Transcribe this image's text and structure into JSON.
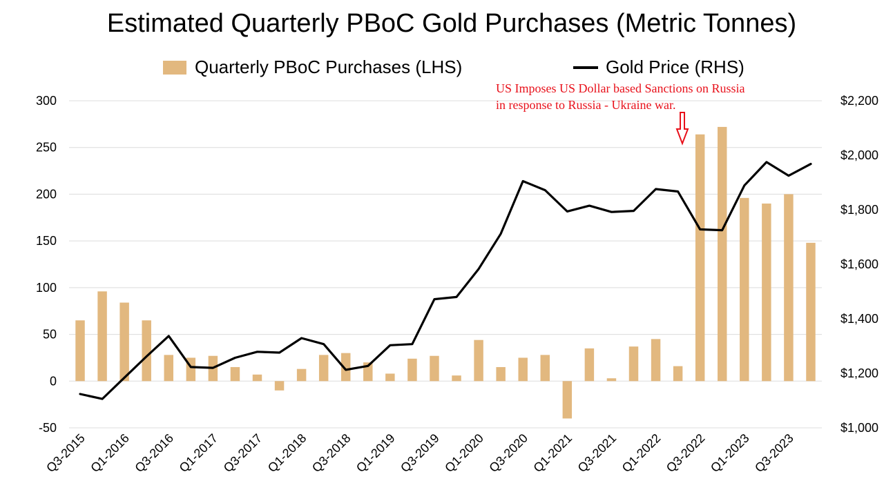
{
  "chart_data": {
    "type": "bar+line",
    "title": "Estimated Quarterly PBoC Gold Purchases (Metric Tonnes)",
    "legend": {
      "placement": "top-center",
      "bars_label": "Quarterly PBoC Purchases (LHS)",
      "line_label": "Gold Price (RHS)"
    },
    "colors": {
      "bar": "#e2b87f",
      "line": "#000000",
      "grid": "#dcdcdc",
      "annotation": "#e8101a"
    },
    "categories": [
      "Q3-2015",
      "Q4-2015",
      "Q1-2016",
      "Q2-2016",
      "Q3-2016",
      "Q4-2016",
      "Q1-2017",
      "Q2-2017",
      "Q3-2017",
      "Q4-2017",
      "Q1-2018",
      "Q2-2018",
      "Q3-2018",
      "Q4-2018",
      "Q1-2019",
      "Q2-2019",
      "Q3-2019",
      "Q4-2019",
      "Q1-2020",
      "Q2-2020",
      "Q3-2020",
      "Q4-2020",
      "Q1-2021",
      "Q2-2021",
      "Q3-2021",
      "Q4-2021",
      "Q1-2022",
      "Q2-2022",
      "Q3-2022",
      "Q4-2022",
      "Q1-2023",
      "Q2-2023",
      "Q3-2023",
      "Q4-2023"
    ],
    "x_tick_labels": [
      "Q3-2015",
      "Q1-2016",
      "Q3-2016",
      "Q1-2017",
      "Q3-2017",
      "Q1-2018",
      "Q3-2018",
      "Q1-2019",
      "Q3-2019",
      "Q1-2020",
      "Q3-2020",
      "Q1-2021",
      "Q3-2021",
      "Q1-2022",
      "Q3-2022",
      "Q1-2023",
      "Q3-2023"
    ],
    "series": [
      {
        "name": "Quarterly PBoC Purchases (LHS)",
        "type": "bar",
        "axis": "left",
        "values": [
          65,
          96,
          84,
          65,
          28,
          25,
          27,
          15,
          7,
          -10,
          13,
          28,
          30,
          20,
          8,
          24,
          27,
          6,
          44,
          15,
          25,
          28,
          -40,
          35,
          3,
          37,
          45,
          16,
          264,
          272,
          196,
          190,
          200,
          148
        ]
      },
      {
        "name": "Gold Price (RHS)",
        "type": "line",
        "axis": "right",
        "values": [
          1124,
          1106,
          1184,
          1262,
          1337,
          1223,
          1220,
          1257,
          1279,
          1276,
          1329,
          1307,
          1213,
          1227,
          1303,
          1307,
          1472,
          1480,
          1583,
          1712,
          1905,
          1872,
          1794,
          1815,
          1792,
          1796,
          1876,
          1867,
          1728,
          1725,
          1889,
          1975,
          1925,
          1968
        ]
      }
    ],
    "y_left": {
      "range": [
        -50,
        300
      ],
      "ticks": [
        -50,
        0,
        50,
        100,
        150,
        200,
        250,
        300
      ],
      "tick_labels": [
        "-50",
        "0",
        "50",
        "100",
        "150",
        "200",
        "250",
        "300"
      ]
    },
    "y_right": {
      "range": [
        1000,
        2200
      ],
      "ticks": [
        1000,
        1200,
        1400,
        1600,
        1800,
        2000,
        2200
      ],
      "tick_labels": [
        "$1,000",
        "$1,200",
        "$1,400",
        "$1,600",
        "$1,800",
        "$2,000",
        "$2,200"
      ]
    },
    "grid": true,
    "annotation": {
      "lines": [
        "US Imposes US Dollar based Sanctions on Russia",
        "in response to Russia - Ukraine war."
      ],
      "arrow": "down",
      "target_category": "Q2-2022"
    }
  }
}
